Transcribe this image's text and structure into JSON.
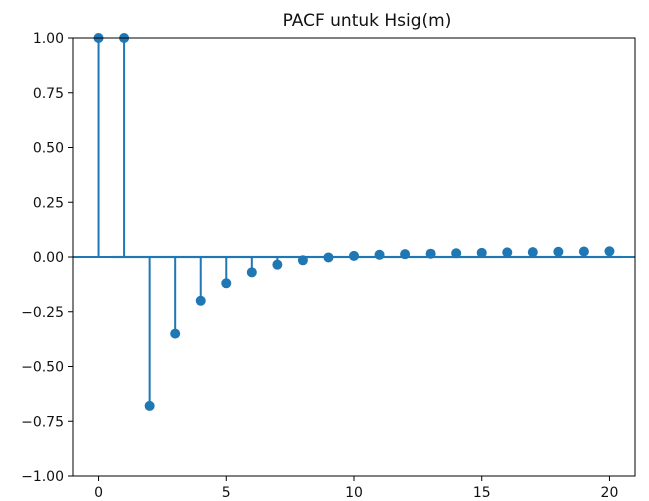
{
  "chart_data": {
    "type": "scatter",
    "style": "stem",
    "title": "PACF untuk Hsig(m)",
    "xlabel": "",
    "ylabel": "",
    "xlim": [
      -1,
      21
    ],
    "ylim": [
      -1.0,
      1.0
    ],
    "grid": false,
    "xticks": [
      0,
      5,
      10,
      15,
      20
    ],
    "xtick_labels": [
      "0",
      "5",
      "10",
      "15",
      "20"
    ],
    "yticks": [
      1.0,
      0.75,
      0.5,
      0.25,
      0.0,
      -0.25,
      -0.5,
      -0.75,
      -1.0
    ],
    "ytick_labels": [
      "1.00",
      "0.75",
      "0.50",
      "0.25",
      "0.00",
      "−0.25",
      "−0.50",
      "−0.75",
      "−1.00"
    ],
    "series": [
      {
        "x": [
          0,
          1,
          2,
          3,
          4,
          5,
          6,
          7,
          8,
          9,
          10,
          11,
          12,
          13,
          14,
          15,
          16,
          17,
          18,
          19,
          20
        ],
        "values": [
          1.0,
          1.0,
          -0.68,
          -0.35,
          -0.2,
          -0.12,
          -0.07,
          -0.035,
          -0.015,
          -0.002,
          0.005,
          0.01,
          0.013,
          0.015,
          0.017,
          0.019,
          0.021,
          0.022,
          0.024,
          0.025,
          0.026
        ]
      }
    ],
    "colors": {
      "marker": "#1f77b4",
      "confidence_band": "#8ec1e3",
      "axes": "#000000"
    }
  }
}
